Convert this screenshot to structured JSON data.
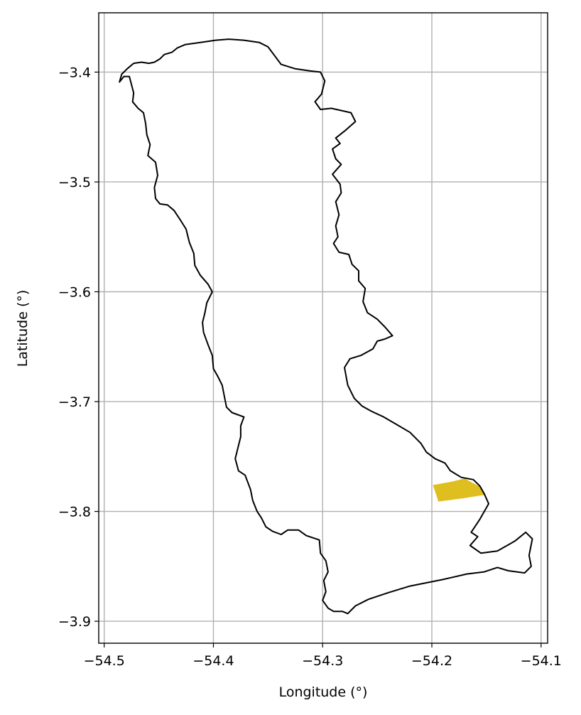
{
  "chart_data": {
    "type": "map",
    "title": "",
    "xlabel": "Longitude (°)",
    "ylabel": "Latitude (°)",
    "xlim": [
      -54.505,
      -54.094
    ],
    "ylim": [
      -3.92,
      -3.346
    ],
    "grid": true,
    "xticks": [
      -54.5,
      -54.4,
      -54.3,
      -54.2,
      -54.1
    ],
    "xtick_labels": [
      "−54.5",
      "−54.4",
      "−54.3",
      "−54.2",
      "−54.1"
    ],
    "yticks": [
      -3.4,
      -3.5,
      -3.6,
      -3.7,
      -3.8,
      -3.9
    ],
    "ytick_labels": [
      "−3.4",
      "−3.5",
      "−3.6",
      "−3.7",
      "−3.8",
      "−3.9"
    ],
    "boundary": {
      "color": "#000000",
      "coords": [
        [
          -54.486,
          -3.409
        ],
        [
          -54.484,
          -3.402
        ],
        [
          -54.479,
          -3.397
        ],
        [
          -54.473,
          -3.392
        ],
        [
          -54.466,
          -3.391
        ],
        [
          -54.459,
          -3.392
        ],
        [
          -54.454,
          -3.391
        ],
        [
          -54.449,
          -3.388
        ],
        [
          -54.445,
          -3.384
        ],
        [
          -54.438,
          -3.382
        ],
        [
          -54.433,
          -3.378
        ],
        [
          -54.426,
          -3.375
        ],
        [
          -54.412,
          -3.373
        ],
        [
          -54.398,
          -3.371
        ],
        [
          -54.386,
          -3.37
        ],
        [
          -54.372,
          -3.371
        ],
        [
          -54.358,
          -3.373
        ],
        [
          -54.35,
          -3.377
        ],
        [
          -54.344,
          -3.385
        ],
        [
          -54.338,
          -3.393
        ],
        [
          -54.325,
          -3.397
        ],
        [
          -54.311,
          -3.399
        ],
        [
          -54.302,
          -3.4
        ],
        [
          -54.298,
          -3.408
        ],
        [
          -54.301,
          -3.42
        ],
        [
          -54.307,
          -3.427
        ],
        [
          -54.302,
          -3.434
        ],
        [
          -54.292,
          -3.433
        ],
        [
          -54.283,
          -3.435
        ],
        [
          -54.274,
          -3.437
        ],
        [
          -54.27,
          -3.445
        ],
        [
          -54.279,
          -3.453
        ],
        [
          -54.288,
          -3.46
        ],
        [
          -54.284,
          -3.465
        ],
        [
          -54.291,
          -3.47
        ],
        [
          -54.288,
          -3.479
        ],
        [
          -54.283,
          -3.484
        ],
        [
          -54.291,
          -3.493
        ],
        [
          -54.284,
          -3.502
        ],
        [
          -54.283,
          -3.51
        ],
        [
          -54.288,
          -3.518
        ],
        [
          -54.285,
          -3.53
        ],
        [
          -54.288,
          -3.54
        ],
        [
          -54.286,
          -3.55
        ],
        [
          -54.29,
          -3.556
        ],
        [
          -54.285,
          -3.564
        ],
        [
          -54.276,
          -3.566
        ],
        [
          -54.273,
          -3.575
        ],
        [
          -54.267,
          -3.581
        ],
        [
          -54.267,
          -3.59
        ],
        [
          -54.261,
          -3.597
        ],
        [
          -54.263,
          -3.609
        ],
        [
          -54.259,
          -3.619
        ],
        [
          -54.25,
          -3.625
        ],
        [
          -54.243,
          -3.632
        ],
        [
          -54.236,
          -3.64
        ],
        [
          -54.243,
          -3.643
        ],
        [
          -54.25,
          -3.645
        ],
        [
          -54.254,
          -3.652
        ],
        [
          -54.265,
          -3.658
        ],
        [
          -54.275,
          -3.661
        ],
        [
          -54.28,
          -3.669
        ],
        [
          -54.277,
          -3.685
        ],
        [
          -54.271,
          -3.697
        ],
        [
          -54.264,
          -3.704
        ],
        [
          -54.255,
          -3.709
        ],
        [
          -54.244,
          -3.714
        ],
        [
          -54.232,
          -3.721
        ],
        [
          -54.22,
          -3.728
        ],
        [
          -54.21,
          -3.738
        ],
        [
          -54.205,
          -3.746
        ],
        [
          -54.197,
          -3.752
        ],
        [
          -54.188,
          -3.756
        ],
        [
          -54.183,
          -3.763
        ],
        [
          -54.173,
          -3.769
        ],
        [
          -54.162,
          -3.771
        ],
        [
          -54.156,
          -3.777
        ],
        [
          -54.152,
          -3.784
        ],
        [
          -54.148,
          -3.793
        ],
        [
          -54.156,
          -3.807
        ],
        [
          -54.164,
          -3.819
        ],
        [
          -54.158,
          -3.823
        ],
        [
          -54.165,
          -3.831
        ],
        [
          -54.155,
          -3.838
        ],
        [
          -54.14,
          -3.836
        ],
        [
          -54.124,
          -3.827
        ],
        [
          -54.114,
          -3.819
        ],
        [
          -54.108,
          -3.825
        ],
        [
          -54.111,
          -3.84
        ],
        [
          -54.109,
          -3.85
        ],
        [
          -54.115,
          -3.856
        ],
        [
          -54.13,
          -3.854
        ],
        [
          -54.14,
          -3.851
        ],
        [
          -54.152,
          -3.855
        ],
        [
          -54.168,
          -3.857
        ],
        [
          -54.19,
          -3.862
        ],
        [
          -54.22,
          -3.868
        ],
        [
          -54.24,
          -3.874
        ],
        [
          -54.258,
          -3.88
        ],
        [
          -54.27,
          -3.886
        ],
        [
          -54.277,
          -3.893
        ],
        [
          -54.282,
          -3.891
        ],
        [
          -54.29,
          -3.891
        ],
        [
          -54.295,
          -3.888
        ],
        [
          -54.3,
          -3.881
        ],
        [
          -54.297,
          -3.873
        ],
        [
          -54.299,
          -3.863
        ],
        [
          -54.295,
          -3.855
        ],
        [
          -54.297,
          -3.845
        ],
        [
          -54.302,
          -3.838
        ],
        [
          -54.303,
          -3.826
        ],
        [
          -54.315,
          -3.822
        ],
        [
          -54.322,
          -3.817
        ],
        [
          -54.332,
          -3.817
        ],
        [
          -54.338,
          -3.821
        ],
        [
          -54.346,
          -3.818
        ],
        [
          -54.352,
          -3.814
        ],
        [
          -54.356,
          -3.806
        ],
        [
          -54.36,
          -3.8
        ],
        [
          -54.364,
          -3.79
        ],
        [
          -54.366,
          -3.78
        ],
        [
          -54.371,
          -3.767
        ],
        [
          -54.377,
          -3.763
        ],
        [
          -54.38,
          -3.752
        ],
        [
          -54.377,
          -3.74
        ],
        [
          -54.375,
          -3.732
        ],
        [
          -54.375,
          -3.722
        ],
        [
          -54.372,
          -3.714
        ],
        [
          -54.383,
          -3.71
        ],
        [
          -54.388,
          -3.705
        ],
        [
          -54.39,
          -3.695
        ],
        [
          -54.392,
          -3.685
        ],
        [
          -54.396,
          -3.677
        ],
        [
          -54.4,
          -3.67
        ],
        [
          -54.401,
          -3.658
        ],
        [
          -54.405,
          -3.648
        ],
        [
          -54.409,
          -3.637
        ],
        [
          -54.41,
          -3.628
        ],
        [
          -54.408,
          -3.62
        ],
        [
          -54.406,
          -3.61
        ],
        [
          -54.401,
          -3.6
        ],
        [
          -54.405,
          -3.593
        ],
        [
          -54.412,
          -3.585
        ],
        [
          -54.417,
          -3.576
        ],
        [
          -54.418,
          -3.565
        ],
        [
          -54.422,
          -3.555
        ],
        [
          -54.425,
          -3.543
        ],
        [
          -54.43,
          -3.535
        ],
        [
          -54.436,
          -3.526
        ],
        [
          -54.442,
          -3.521
        ],
        [
          -54.449,
          -3.52
        ],
        [
          -54.453,
          -3.515
        ],
        [
          -54.454,
          -3.505
        ],
        [
          -54.451,
          -3.494
        ],
        [
          -54.453,
          -3.482
        ],
        [
          -54.46,
          -3.476
        ],
        [
          -54.458,
          -3.466
        ],
        [
          -54.461,
          -3.457
        ],
        [
          -54.462,
          -3.447
        ],
        [
          -54.464,
          -3.437
        ],
        [
          -54.469,
          -3.433
        ],
        [
          -54.474,
          -3.427
        ],
        [
          -54.473,
          -3.419
        ],
        [
          -54.477,
          -3.404
        ],
        [
          -54.482,
          -3.404
        ],
        [
          -54.486,
          -3.409
        ]
      ]
    },
    "highlight_area": {
      "color": "#dfbe1f",
      "coords": [
        [
          -54.199,
          -3.776
        ],
        [
          -54.182,
          -3.773
        ],
        [
          -54.17,
          -3.77
        ],
        [
          -54.155,
          -3.778
        ],
        [
          -54.152,
          -3.785
        ],
        [
          -54.171,
          -3.788
        ],
        [
          -54.194,
          -3.791
        ],
        [
          -54.196,
          -3.785
        ],
        [
          -54.199,
          -3.776
        ]
      ]
    }
  }
}
